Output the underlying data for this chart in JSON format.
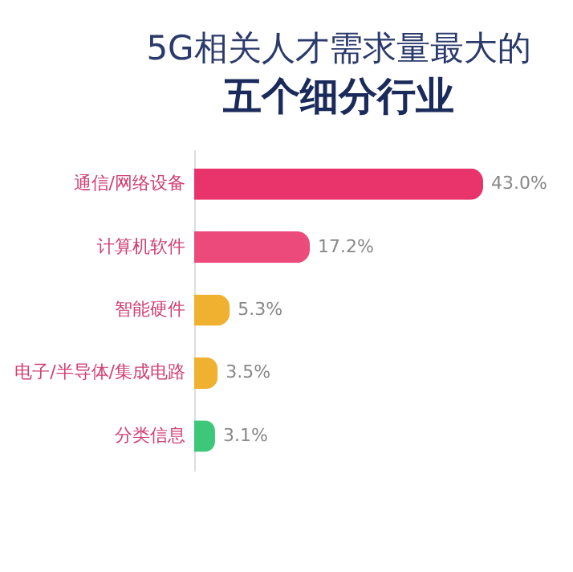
{
  "chart_data": {
    "type": "bar",
    "orientation": "horizontal",
    "title": "5G相关人才需求量最大的",
    "subtitle": "五个细分行业",
    "categories": [
      "通信/网络设备",
      "计算机软件",
      "智能硬件",
      "电子/半导体/集成电路",
      "分类信息"
    ],
    "values": [
      43.0,
      17.2,
      5.3,
      3.5,
      3.1
    ],
    "value_labels": [
      "43.0%",
      "17.2%",
      "5.3%",
      "3.5%",
      "3.1%"
    ],
    "colors": [
      "#e8336b",
      "#ec4a7a",
      "#f0b030",
      "#f0b030",
      "#3cc878"
    ]
  }
}
